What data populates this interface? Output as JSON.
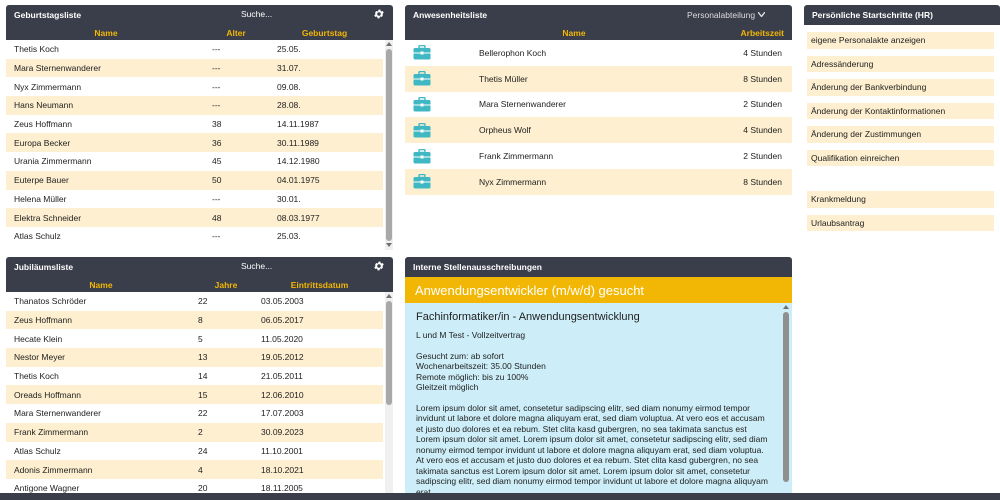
{
  "birthday": {
    "title": "Geburtstagsliste",
    "search_placeholder": "Suche...",
    "columns": [
      "Name",
      "Alter",
      "Geburtstag"
    ],
    "rows": [
      {
        "name": "Thetis Koch",
        "age": "---",
        "date": "25.05."
      },
      {
        "name": "Mara Sternenwanderer",
        "age": "---",
        "date": "31.07."
      },
      {
        "name": "Nyx Zimmermann",
        "age": "---",
        "date": "09.08."
      },
      {
        "name": "Hans Neumann",
        "age": "---",
        "date": "28.08."
      },
      {
        "name": "Zeus Hoffmann",
        "age": "38",
        "date": "14.11.1987"
      },
      {
        "name": "Europa Becker",
        "age": "36",
        "date": "30.11.1989"
      },
      {
        "name": "Urania Zimmermann",
        "age": "45",
        "date": "14.12.1980"
      },
      {
        "name": "Euterpe Bauer",
        "age": "50",
        "date": "04.01.1975"
      },
      {
        "name": "Helena Müller",
        "age": "---",
        "date": "30.01."
      },
      {
        "name": "Elektra Schneider",
        "age": "48",
        "date": "08.03.1977"
      },
      {
        "name": "Atlas Schulz",
        "age": "---",
        "date": "25.03."
      }
    ]
  },
  "jubilee": {
    "title": "Jubiläumsliste",
    "search_placeholder": "Suche...",
    "columns": [
      "Name",
      "Jahre",
      "Eintrittsdatum"
    ],
    "rows": [
      {
        "name": "Thanatos Schröder",
        "years": "22",
        "date": "03.05.2003"
      },
      {
        "name": "Zeus Hoffmann",
        "years": "8",
        "date": "06.05.2017"
      },
      {
        "name": "Hecate Klein",
        "years": "5",
        "date": "11.05.2020"
      },
      {
        "name": "Nestor Meyer",
        "years": "13",
        "date": "19.05.2012"
      },
      {
        "name": "Thetis Koch",
        "years": "14",
        "date": "21.05.2011"
      },
      {
        "name": "Oreads Hoffmann",
        "years": "15",
        "date": "12.06.2010"
      },
      {
        "name": "Mara Sternenwanderer",
        "years": "22",
        "date": "17.07.2003"
      },
      {
        "name": "Frank Zimmermann",
        "years": "2",
        "date": "30.09.2023"
      },
      {
        "name": "Atlas Schulz",
        "years": "24",
        "date": "11.10.2001"
      },
      {
        "name": "Adonis Zimmermann",
        "years": "4",
        "date": "18.10.2021"
      },
      {
        "name": "Antigone Wagner",
        "years": "20",
        "date": "18.11.2005"
      }
    ]
  },
  "attendance": {
    "title": "Anwesenheitsliste",
    "department": "Personalabteilung",
    "columns": [
      "Name",
      "Arbeitszeit"
    ],
    "rows": [
      {
        "name": "Bellerophon Koch",
        "time": "4 Stunden"
      },
      {
        "name": "Thetis Müller",
        "time": "8 Stunden"
      },
      {
        "name": "Mara Sternenwanderer",
        "time": "2 Stunden"
      },
      {
        "name": "Orpheus Wolf",
        "time": "4 Stunden"
      },
      {
        "name": "Frank Zimmermann",
        "time": "2 Stunden"
      },
      {
        "name": "Nyx Zimmermann",
        "time": "8 Stunden"
      }
    ]
  },
  "steps": {
    "title": "Persönliche Startschritte (HR)",
    "items": [
      "eigene Personalakte anzeigen",
      "Adressänderung",
      "Änderung der Bankverbindung",
      "Änderung der Kontaktinformationen",
      "Änderung der Zustimmungen",
      "Qualifikation einreichen"
    ],
    "items2": [
      "Krankmeldung",
      "Urlaubsantrag"
    ]
  },
  "jobs": {
    "title": "Interne Stellenausschreibungen",
    "job_title": "Anwendungsentwickler (m/w/d) gesucht",
    "subtitle": "Fachinformatiker/in - Anwendungsentwicklung",
    "company": "L und M Test - Vollzeitvertrag",
    "details": [
      "Gesucht zum: ab sofort",
      "Wochenarbeitszeit: 35.00 Stunden",
      "Remote möglich: bis zu 100%",
      "Gleitzeit möglich"
    ],
    "body": "Lorem ipsum dolor sit amet, consetetur sadipscing elitr, sed diam nonumy eirmod tempor invidunt ut labore et dolore magna aliquyam erat, sed diam voluptua. At vero eos et accusam et justo duo dolores et ea rebum. Stet clita kasd gubergren, no sea takimata sanctus est Lorem ipsum dolor sit amet. Lorem ipsum dolor sit amet, consetetur sadipscing elitr, sed diam nonumy eirmod tempor invidunt ut labore et dolore magna aliquyam erat, sed diam voluptua. At vero eos et accusam et justo duo dolores et ea rebum. Stet clita kasd gubergren, no sea takimata sanctus est Lorem ipsum dolor sit amet. Lorem ipsum dolor sit amet, consetetur sadipscing elitr, sed diam nonumy eirmod tempor invidunt ut labore et dolore magna aliquyam erat."
  },
  "colors": {
    "header": "#3a3d4a",
    "accent": "#f2b705",
    "row_alt": "#fdefcf",
    "job_bg": "#cdeef8",
    "bag": "#3fb8c4"
  }
}
